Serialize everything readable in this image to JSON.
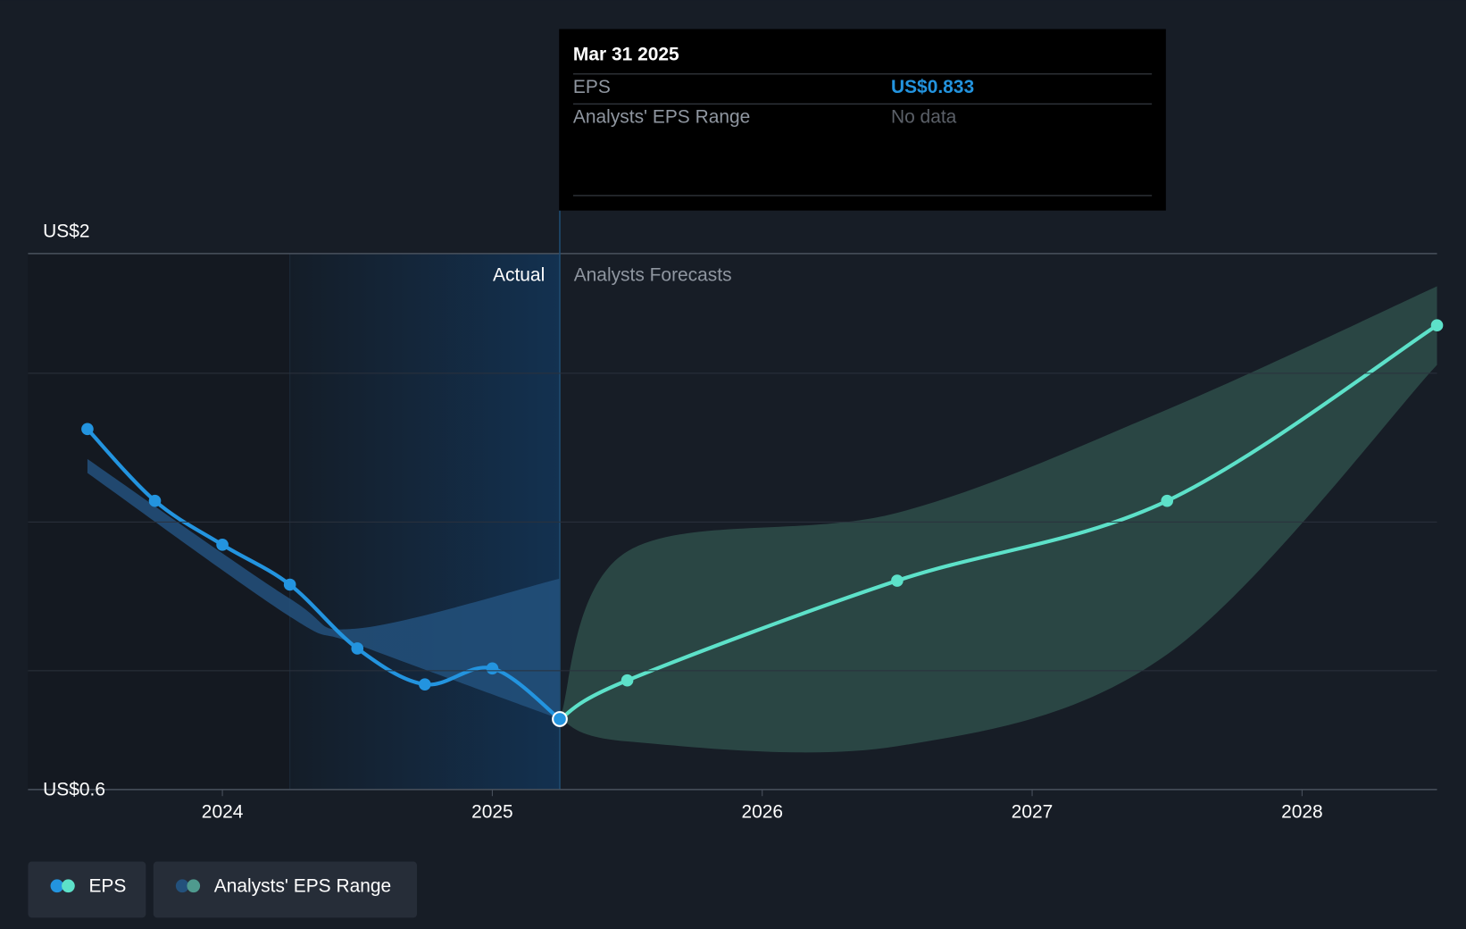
{
  "chart_data": {
    "type": "line",
    "xlim": [
      2023.28,
      2028.5
    ],
    "xticks": [
      2024,
      2025,
      2026,
      2027,
      2028
    ],
    "ylim": [
      0.6,
      2
    ],
    "yticks": [
      {
        "value": 0.6,
        "label": "US$0.6"
      },
      {
        "value": 2,
        "label": "US$2"
      }
    ],
    "divider": 2025.25,
    "past_band": [
      2024.25,
      2025.25
    ],
    "actual_label": "Actual",
    "forecast_label": "Analysts Forecasts",
    "series": [
      {
        "name": "EPS",
        "color": "#2394df",
        "forecast_color": "#5de1c9",
        "x": [
          2023.5,
          2023.75,
          2024.0,
          2024.25,
          2024.5,
          2024.75,
          2025.0,
          2025.25,
          2025.5,
          2026.5,
          2027.5,
          2028.5
        ],
        "values": [
          1.56,
          1.38,
          1.27,
          1.17,
          1.01,
          0.92,
          0.96,
          0.833,
          0.93,
          1.18,
          1.38,
          1.82
        ]
      }
    ],
    "range": {
      "name": "Analysts' EPS Range",
      "color": "#23517c",
      "forecast_color": "#2a4644",
      "actual": {
        "x": [
          2023.5,
          2024.25,
          2024.5,
          2025.25
        ],
        "low": [
          1.45,
          1.09,
          1.02,
          0.833
        ],
        "high": [
          1.485,
          1.135,
          1.06,
          1.185
        ]
      },
      "forecast": {
        "x": [
          2025.25,
          2025.5,
          2026.5,
          2027.5,
          2028.5
        ],
        "low": [
          0.833,
          0.777,
          0.765,
          0.995,
          1.721
        ],
        "high": [
          0.833,
          1.253,
          1.35,
          1.609,
          1.918
        ]
      }
    },
    "tooltip": {
      "date": "Mar 31 2025",
      "rows": [
        {
          "label": "EPS",
          "value": "US$0.833"
        },
        {
          "label": "Analysts' EPS Range",
          "value": "No data"
        }
      ]
    }
  }
}
